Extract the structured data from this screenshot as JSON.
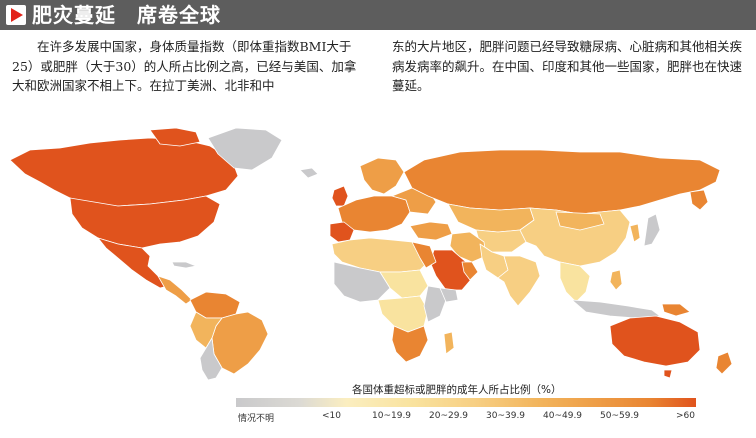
{
  "header": {
    "title": "肥灾蔓延　席卷全球",
    "icon": "play-icon"
  },
  "article": {
    "col1": "在许多发展中国家，身体质量指数（即体重指数BMI大于25）或肥胖（大于30）的人所占比例之高，已经与美国、加拿大和欧洲国家不相上下。在拉丁美洲、北非和中",
    "col2": "东的大片地区，肥胖问题已经导致糖尿病、心脏病和其他相关疾病发病率的飙升。在中国、印度和其他一些国家，肥胖也在快速蔓延。"
  },
  "legend": {
    "title": "各国体重超标或肥胖的成年人所占比例（%）",
    "items": [
      {
        "label": "情况不明",
        "color": "#c9c9cb"
      },
      {
        "label": "<10",
        "color": "#fbeec0"
      },
      {
        "label": "10~19.9",
        "color": "#f9e39f"
      },
      {
        "label": "20~29.9",
        "color": "#f7cf83"
      },
      {
        "label": "30~39.9",
        "color": "#f2b45c"
      },
      {
        "label": "40~49.9",
        "color": "#ee9e47"
      },
      {
        "label": "50~59.9",
        "color": "#e98532"
      },
      {
        "label": ">60",
        "color": "#e0531d"
      }
    ]
  },
  "colors": {
    "header_bg": "#5d5d5d",
    "accent": "#e2231a",
    "unknown": "#c9c9cb",
    "very_high": "#e0531d",
    "high": "#e98532",
    "mid_high": "#ee9e47",
    "mid": "#f2b45c",
    "low_mid": "#f7cf83",
    "low": "#f9e39f"
  }
}
